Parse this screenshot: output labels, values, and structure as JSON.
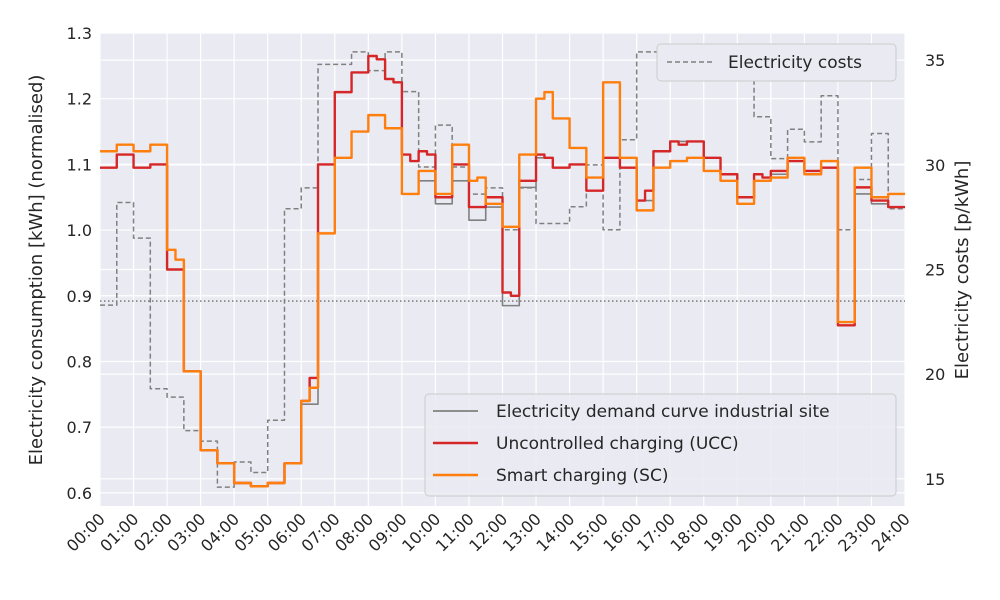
{
  "chart_data": {
    "type": "line",
    "xlabel": "",
    "ylabel": "Electricity consumption [kWh] (normalised)",
    "ylabel_right": "Electricity costs [p/kWh]",
    "ylim": [
      0.58,
      1.3
    ],
    "ylim_right": [
      13.7,
      36.3
    ],
    "xlim": [
      0,
      24
    ],
    "x_tick_labels": [
      "00:00",
      "01:00",
      "02:00",
      "03:00",
      "04:00",
      "05:00",
      "06:00",
      "07:00",
      "08:00",
      "09:00",
      "10:00",
      "11:00",
      "12:00",
      "13:00",
      "14:00",
      "15:00",
      "16:00",
      "17:00",
      "18:00",
      "19:00",
      "20:00",
      "21:00",
      "22:00",
      "23:00",
      "24:00"
    ],
    "y_ticks": [
      "0.6",
      "0.7",
      "0.8",
      "0.9",
      "1.0",
      "1.1",
      "1.2",
      "1.3"
    ],
    "y_ticks_right": [
      "15",
      "20",
      "25",
      "30",
      "35"
    ],
    "reference_line_y": 0.892,
    "grid": true,
    "background": "#eaeaf2",
    "legend_upper": {
      "placement": "top-right",
      "entries": [
        "Electricity costs"
      ]
    },
    "legend_lower": {
      "placement": "bottom-right",
      "entries": [
        "Electricity demand curve industrial site",
        "Uncontrolled charging (UCC)",
        "Smart charging (SC)"
      ]
    },
    "series": [
      {
        "name": "Electricity demand curve industrial site",
        "color": "#808080",
        "style": "solid",
        "x": [
          0,
          0.25,
          0.5,
          0.75,
          1,
          1.25,
          1.5,
          1.75,
          2,
          2.25,
          2.5,
          2.75,
          3,
          3.25,
          3.5,
          3.75,
          4,
          4.25,
          4.5,
          4.75,
          5,
          5.25,
          5.5,
          5.75,
          6,
          6.25,
          6.5,
          6.75,
          7,
          7.25,
          7.5,
          7.75,
          8,
          8.25,
          8.5,
          8.75,
          9,
          9.25,
          9.5,
          9.75,
          10,
          10.25,
          10.5,
          10.75,
          11,
          11.25,
          11.5,
          11.75,
          12,
          12.25,
          12.5,
          12.75,
          13,
          13.25,
          13.5,
          13.75,
          14,
          14.25,
          14.5,
          14.75,
          15,
          15.25,
          15.5,
          15.75,
          16,
          16.25,
          16.5,
          16.75,
          17,
          17.25,
          17.5,
          17.75,
          18,
          18.25,
          18.5,
          18.75,
          19,
          19.25,
          19.5,
          19.75,
          20,
          20.25,
          20.5,
          20.75,
          21,
          21.25,
          21.5,
          21.75,
          22,
          22.25,
          22.5,
          22.75,
          23,
          23.25,
          23.5,
          23.75,
          24
        ],
        "values": [
          1.095,
          1.095,
          1.115,
          1.115,
          1.095,
          1.095,
          1.1,
          1.1,
          0.94,
          0.94,
          0.785,
          0.785,
          0.665,
          0.665,
          0.645,
          0.645,
          0.615,
          0.615,
          0.61,
          0.61,
          0.615,
          0.615,
          0.645,
          0.645,
          0.735,
          0.735,
          1.1,
          1.1,
          1.21,
          1.21,
          1.24,
          1.24,
          1.265,
          1.26,
          1.23,
          1.225,
          1.055,
          1.055,
          1.075,
          1.075,
          1.04,
          1.04,
          1.075,
          1.075,
          1.015,
          1.015,
          1.035,
          1.035,
          0.885,
          0.885,
          1.065,
          1.065,
          1.11,
          1.11,
          1.095,
          1.095,
          1.1,
          1.1,
          1.06,
          1.06,
          1.11,
          1.11,
          1.095,
          1.095,
          1.045,
          1.045,
          1.12,
          1.12,
          1.135,
          1.135,
          1.135,
          1.135,
          1.11,
          1.11,
          1.085,
          1.085,
          1.05,
          1.05,
          1.075,
          1.075,
          1.085,
          1.085,
          1.105,
          1.105,
          1.085,
          1.085,
          1.095,
          1.095,
          0.855,
          0.855,
          1.055,
          1.055,
          1.04,
          1.04,
          1.035,
          1.035,
          1.035
        ]
      },
      {
        "name": "Uncontrolled charging (UCC)",
        "color": "#d62728",
        "style": "solid",
        "x": [
          0,
          0.25,
          0.5,
          0.75,
          1,
          1.25,
          1.5,
          1.75,
          2,
          2.25,
          2.5,
          2.75,
          3,
          3.25,
          3.5,
          3.75,
          4,
          4.25,
          4.5,
          4.75,
          5,
          5.25,
          5.5,
          5.75,
          6,
          6.25,
          6.5,
          6.75,
          7,
          7.25,
          7.5,
          7.75,
          8,
          8.25,
          8.5,
          8.75,
          9,
          9.25,
          9.5,
          9.75,
          10,
          10.25,
          10.5,
          10.75,
          11,
          11.25,
          11.5,
          11.75,
          12,
          12.25,
          12.5,
          12.75,
          13,
          13.25,
          13.5,
          13.75,
          14,
          14.25,
          14.5,
          14.75,
          15,
          15.25,
          15.5,
          15.75,
          16,
          16.25,
          16.5,
          16.75,
          17,
          17.25,
          17.5,
          17.75,
          18,
          18.25,
          18.5,
          18.75,
          19,
          19.25,
          19.5,
          19.75,
          20,
          20.25,
          20.5,
          20.75,
          21,
          21.25,
          21.5,
          21.75,
          22,
          22.25,
          22.5,
          22.75,
          23,
          23.25,
          23.5,
          23.75,
          24
        ],
        "values": [
          1.095,
          1.095,
          1.115,
          1.115,
          1.095,
          1.095,
          1.1,
          1.1,
          0.94,
          0.94,
          0.785,
          0.785,
          0.665,
          0.665,
          0.645,
          0.645,
          0.615,
          0.615,
          0.61,
          0.61,
          0.615,
          0.615,
          0.645,
          0.645,
          0.74,
          0.775,
          1.1,
          1.1,
          1.21,
          1.21,
          1.24,
          1.24,
          1.265,
          1.26,
          1.23,
          1.225,
          1.115,
          1.105,
          1.12,
          1.115,
          1.05,
          1.05,
          1.1,
          1.1,
          1.035,
          1.035,
          1.05,
          1.05,
          0.905,
          0.9,
          1.075,
          1.075,
          1.115,
          1.11,
          1.095,
          1.095,
          1.1,
          1.1,
          1.06,
          1.06,
          1.11,
          1.11,
          1.095,
          1.095,
          1.045,
          1.06,
          1.12,
          1.12,
          1.135,
          1.13,
          1.135,
          1.135,
          1.11,
          1.11,
          1.085,
          1.085,
          1.05,
          1.05,
          1.085,
          1.08,
          1.09,
          1.09,
          1.105,
          1.105,
          1.09,
          1.09,
          1.095,
          1.095,
          0.855,
          0.855,
          1.065,
          1.065,
          1.045,
          1.045,
          1.035,
          1.035,
          1.035
        ]
      },
      {
        "name": "Smart charging (SC)",
        "color": "#ff7f0e",
        "style": "solid",
        "x": [
          0,
          0.25,
          0.5,
          0.75,
          1,
          1.25,
          1.5,
          1.75,
          2,
          2.25,
          2.5,
          2.75,
          3,
          3.25,
          3.5,
          3.75,
          4,
          4.25,
          4.5,
          4.75,
          5,
          5.25,
          5.5,
          5.75,
          6,
          6.25,
          6.5,
          6.75,
          7,
          7.25,
          7.5,
          7.75,
          8,
          8.25,
          8.5,
          8.75,
          9,
          9.25,
          9.5,
          9.75,
          10,
          10.25,
          10.5,
          10.75,
          11,
          11.25,
          11.5,
          11.75,
          12,
          12.25,
          12.5,
          12.75,
          13,
          13.25,
          13.5,
          13.75,
          14,
          14.25,
          14.5,
          14.75,
          15,
          15.25,
          15.5,
          15.75,
          16,
          16.25,
          16.5,
          16.75,
          17,
          17.25,
          17.5,
          17.75,
          18,
          18.25,
          18.5,
          18.75,
          19,
          19.25,
          19.5,
          19.75,
          20,
          20.25,
          20.5,
          20.75,
          21,
          21.25,
          21.5,
          21.75,
          22,
          22.25,
          22.5,
          22.75,
          23,
          23.25,
          23.5,
          23.75,
          24
        ],
        "values": [
          1.12,
          1.12,
          1.13,
          1.13,
          1.12,
          1.12,
          1.13,
          1.13,
          0.97,
          0.955,
          0.785,
          0.785,
          0.665,
          0.665,
          0.645,
          0.645,
          0.615,
          0.615,
          0.61,
          0.61,
          0.615,
          0.615,
          0.645,
          0.645,
          0.74,
          0.76,
          0.995,
          0.995,
          1.11,
          1.11,
          1.15,
          1.15,
          1.175,
          1.175,
          1.155,
          1.155,
          1.055,
          1.055,
          1.09,
          1.09,
          1.055,
          1.055,
          1.13,
          1.13,
          1.075,
          1.08,
          1.04,
          1.04,
          1.005,
          1.005,
          1.115,
          1.115,
          1.2,
          1.21,
          1.17,
          1.17,
          1.125,
          1.125,
          1.08,
          1.08,
          1.225,
          1.225,
          1.11,
          1.11,
          1.03,
          1.03,
          1.095,
          1.095,
          1.105,
          1.105,
          1.11,
          1.11,
          1.09,
          1.09,
          1.075,
          1.075,
          1.04,
          1.04,
          1.075,
          1.075,
          1.08,
          1.08,
          1.11,
          1.11,
          1.085,
          1.085,
          1.105,
          1.105,
          0.86,
          0.86,
          1.095,
          1.095,
          1.05,
          1.05,
          1.055,
          1.055,
          1.055
        ]
      },
      {
        "name": "Electricity costs",
        "color": "#808080",
        "style": "dashed",
        "axis": "right",
        "x": [
          0,
          0.25,
          0.5,
          0.75,
          1,
          1.25,
          1.5,
          1.75,
          2,
          2.25,
          2.5,
          2.75,
          3,
          3.25,
          3.5,
          3.75,
          4,
          4.25,
          4.5,
          4.75,
          5,
          5.25,
          5.5,
          5.75,
          6,
          6.25,
          6.5,
          6.75,
          7,
          7.25,
          7.5,
          7.75,
          8,
          8.25,
          8.5,
          8.75,
          9,
          9.25,
          9.5,
          9.75,
          10,
          10.25,
          10.5,
          10.75,
          11,
          11.25,
          11.5,
          11.75,
          12,
          12.25,
          12.5,
          12.75,
          13,
          13.25,
          13.5,
          13.75,
          14,
          14.25,
          14.5,
          14.75,
          15,
          15.25,
          15.5,
          15.75,
          16,
          16.25,
          16.5,
          16.75,
          17,
          17.25,
          17.5,
          17.75,
          18,
          18.25,
          18.5,
          18.75,
          19,
          19.25,
          19.5,
          19.75,
          20,
          20.25,
          20.5,
          20.75,
          21,
          21.25,
          21.5,
          21.75,
          22,
          22.25,
          22.5,
          22.75,
          23,
          23.25,
          23.5,
          23.75,
          24
        ],
        "values": [
          23.3,
          23.3,
          28.2,
          28.2,
          26.5,
          26.5,
          19.3,
          19.3,
          18.9,
          18.9,
          17.3,
          17.3,
          16.8,
          16.8,
          14.6,
          14.6,
          15.8,
          15.8,
          15.3,
          15.3,
          17.8,
          17.8,
          27.9,
          27.9,
          28.9,
          28.9,
          34.8,
          34.8,
          34.8,
          34.8,
          35.4,
          35.4,
          34.5,
          34.5,
          35.4,
          35.4,
          33.5,
          33.5,
          29.9,
          29.9,
          31.9,
          31.9,
          29.9,
          29.9,
          28.6,
          28.6,
          28.9,
          28.9,
          26.9,
          26.9,
          28.9,
          28.9,
          27.2,
          27.2,
          27.2,
          27.2,
          28,
          28,
          30,
          30,
          26.9,
          26.9,
          31.2,
          31.2,
          35.4,
          35.4,
          35.4,
          35.4,
          35.4,
          35.4,
          35.4,
          35.4,
          35.4,
          35.4,
          35.4,
          35.4,
          35.4,
          35.4,
          32.3,
          32.3,
          30.3,
          30.3,
          31.7,
          31.7,
          31.1,
          31.1,
          33.3,
          33.3,
          26.9,
          26.9,
          29.3,
          29.3,
          31.5,
          31.5,
          27.9,
          27.9,
          27.9
        ]
      }
    ]
  }
}
